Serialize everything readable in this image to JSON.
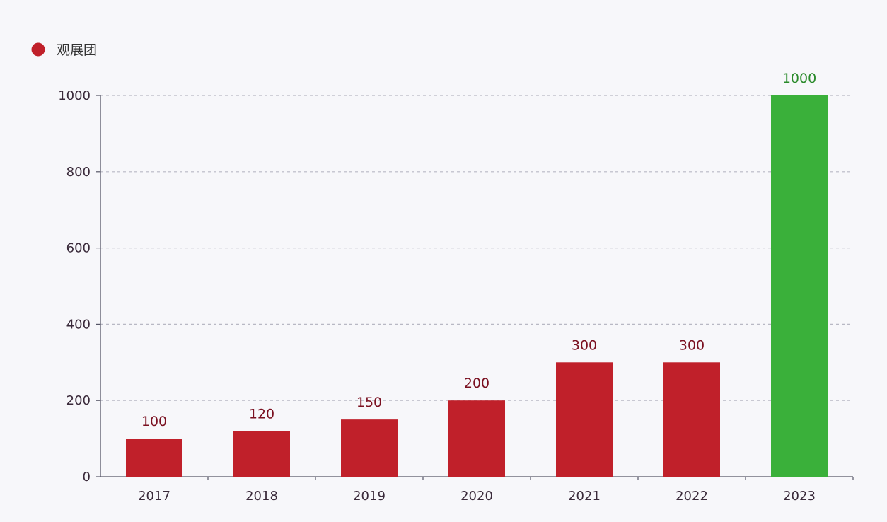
{
  "legend": {
    "label": "观展团"
  },
  "colors": {
    "bar_default": "#c0202a",
    "bar_highlight": "#3ab03a",
    "label_default": "#7a1020",
    "label_highlight": "#2a8a2a",
    "axis": "#555566",
    "grid": "#b8b8c4"
  },
  "chart_data": {
    "type": "bar",
    "title": "",
    "xlabel": "",
    "ylabel": "",
    "categories": [
      "2017",
      "2018",
      "2019",
      "2020",
      "2021",
      "2022",
      "2023"
    ],
    "series": [
      {
        "name": "观展团",
        "values": [
          100,
          120,
          150,
          200,
          300,
          300,
          1000
        ]
      }
    ],
    "data_labels": [
      "100",
      "120",
      "150",
      "200",
      "300",
      "300",
      "1000"
    ],
    "highlight_index": 6,
    "ylim": [
      0,
      1000
    ],
    "yticks": [
      0,
      200,
      400,
      600,
      800,
      1000
    ],
    "ytick_labels": [
      "0",
      "200",
      "400",
      "600",
      "800",
      "1000"
    ],
    "grid": true,
    "legend_position": "top-left"
  }
}
